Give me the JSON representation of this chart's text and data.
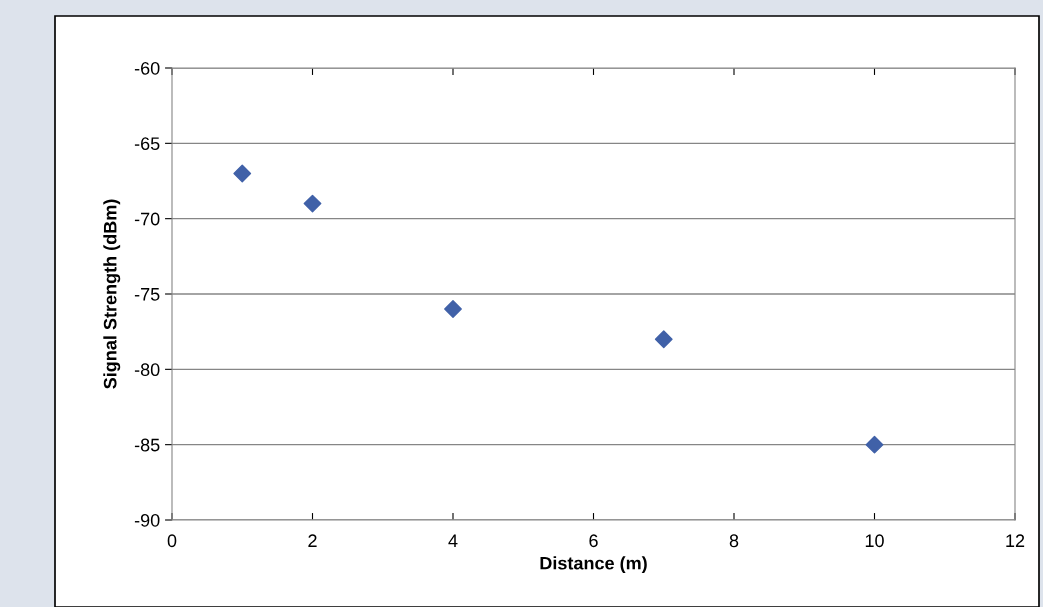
{
  "chart_data": {
    "type": "scatter",
    "xlabel": "Distance (m)",
    "ylabel": "Signal Strength (dBm)",
    "x": [
      1,
      2,
      4,
      7,
      10
    ],
    "series": [
      {
        "color": "#4061a8",
        "values": [
          -67,
          -69,
          -76,
          -78,
          -85
        ]
      }
    ],
    "xlim": [
      0,
      12
    ],
    "xticks": [
      0,
      2,
      4,
      6,
      8,
      10,
      12
    ],
    "ylim": [
      -90,
      -60
    ],
    "yticks": [
      -90,
      -85,
      -80,
      -75,
      -70,
      -65,
      -60
    ],
    "grid": "y",
    "marker": "diamond"
  }
}
